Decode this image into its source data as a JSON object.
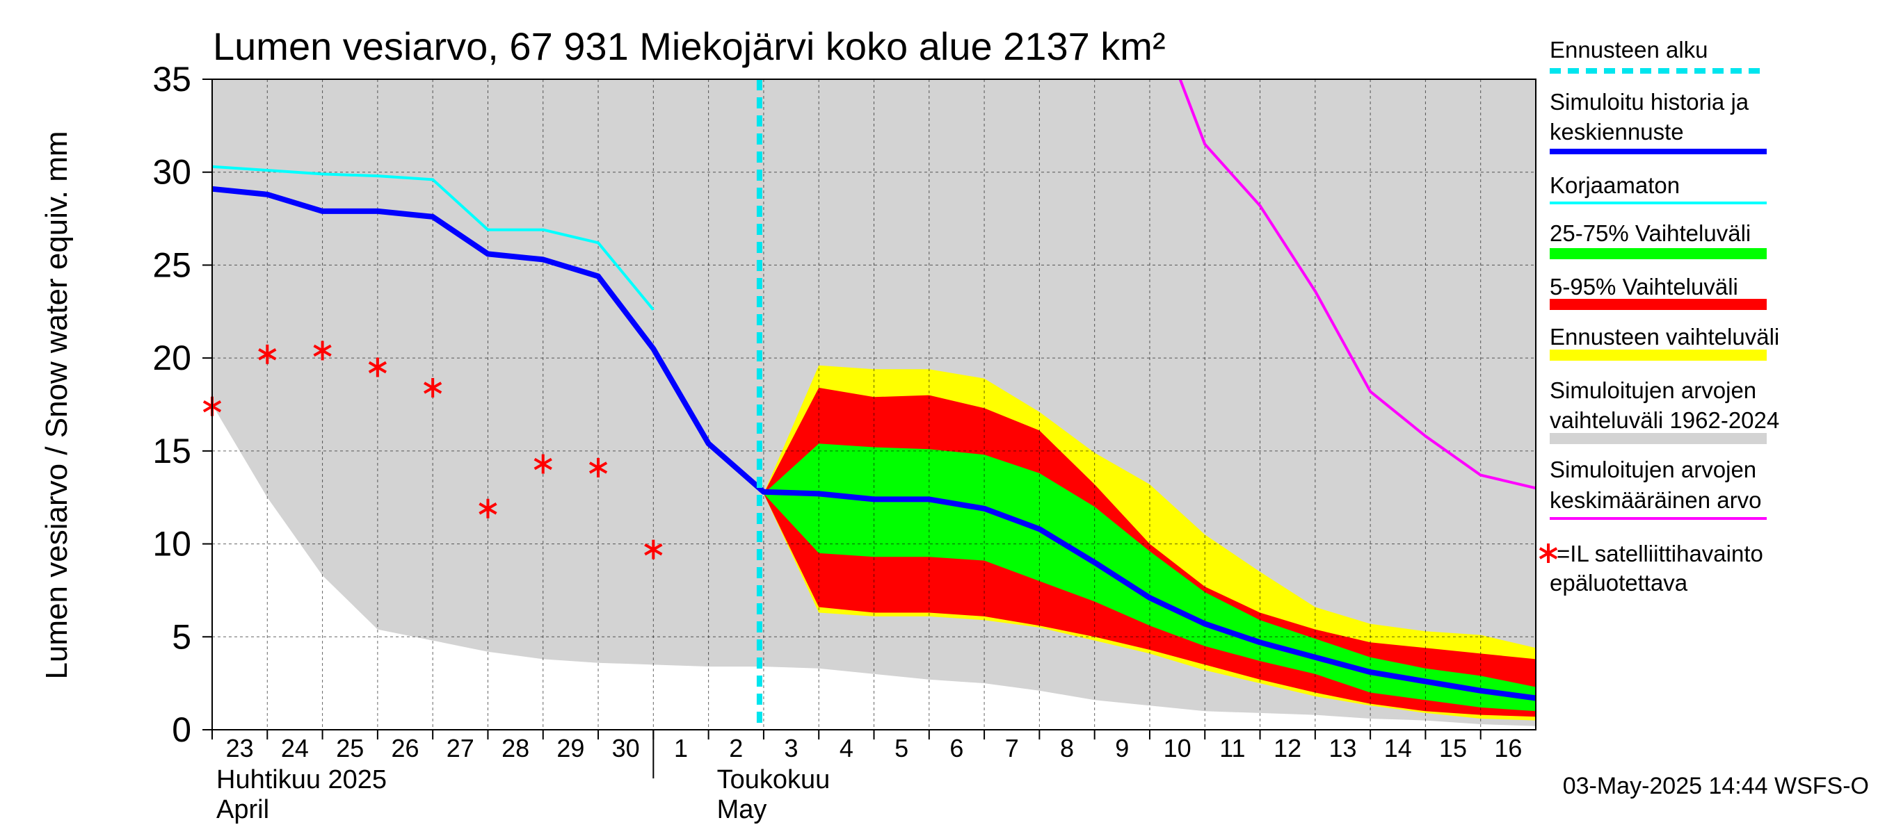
{
  "chart_data": {
    "type": "area",
    "title": "Lumen vesiarvo, 67 931 Miekojärvi koko alue 2137 km²",
    "ylabel": "Lumen vesiarvo / Snow water equiv.    mm",
    "ylim": [
      0,
      35
    ],
    "yticks": [
      0,
      5,
      10,
      15,
      20,
      25,
      30,
      35
    ],
    "x_day_labels": [
      "23",
      "24",
      "25",
      "26",
      "27",
      "28",
      "29",
      "30",
      "1",
      "2",
      "3",
      "4",
      "5",
      "6",
      "7",
      "8",
      "9",
      "10",
      "11",
      "12",
      "13",
      "14",
      "15",
      "16"
    ],
    "month_labels": [
      {
        "fi": "Huhtikuu  2025",
        "en": "April",
        "start_day": "23"
      },
      {
        "fi": "Toukokuu",
        "en": "May",
        "start_day": "2"
      }
    ],
    "grid": true,
    "forecast_start_day_index": 10,
    "series": [
      {
        "name": "Simuloitujen arvojen vaihteluväli 1962-2024",
        "kind": "band",
        "color": "#d3d3d3",
        "x": [
          0,
          1,
          2,
          3,
          3.5,
          4,
          4.5,
          5,
          5.5,
          6,
          7,
          8,
          9,
          10,
          11,
          12,
          13,
          14,
          15,
          16,
          17,
          18,
          19,
          20,
          21,
          22,
          23,
          24
        ],
        "upper": [
          35,
          35,
          35,
          35,
          35,
          35,
          35,
          35,
          35,
          35,
          35,
          35,
          35,
          35,
          35,
          35,
          35,
          35,
          35,
          35,
          35,
          35,
          35,
          35,
          35,
          35,
          35,
          35
        ],
        "lower": [
          17.5,
          12.5,
          8.3,
          5.4,
          5.1,
          4.8,
          4.5,
          4.2,
          4.0,
          3.8,
          3.6,
          3.5,
          3.4,
          3.4,
          3.3,
          3.0,
          2.7,
          2.5,
          2.1,
          1.6,
          1.3,
          1.0,
          0.9,
          0.8,
          0.6,
          0.5,
          0.3,
          0.2
        ]
      },
      {
        "name": "Ennusteen vaihteluväli",
        "kind": "band",
        "color": "#ffff00",
        "x": [
          10,
          11,
          12,
          13,
          14,
          15,
          16,
          17,
          18,
          19,
          20,
          21,
          22,
          23,
          24
        ],
        "upper": [
          12.7,
          19.6,
          19.4,
          19.4,
          18.9,
          17.1,
          14.9,
          13.2,
          10.5,
          8.5,
          6.6,
          5.7,
          5.3,
          5.1,
          4.4
        ],
        "lower": [
          12.7,
          6.3,
          6.1,
          6.1,
          5.9,
          5.5,
          4.8,
          4.1,
          3.2,
          2.5,
          1.8,
          1.3,
          0.9,
          0.6,
          0.5
        ]
      },
      {
        "name": "5-95% Vaihteluväli",
        "kind": "band",
        "color": "#ff0000",
        "x": [
          10,
          11,
          12,
          13,
          14,
          15,
          16,
          17,
          18,
          19,
          20,
          21,
          22,
          23,
          24
        ],
        "upper": [
          12.7,
          18.4,
          17.9,
          18.0,
          17.3,
          16.1,
          13.2,
          10.0,
          7.7,
          6.3,
          5.4,
          4.7,
          4.4,
          4.1,
          3.8
        ],
        "lower": [
          12.7,
          6.6,
          6.3,
          6.3,
          6.1,
          5.6,
          5.0,
          4.3,
          3.5,
          2.7,
          2.0,
          1.4,
          1.0,
          0.8,
          0.7
        ]
      },
      {
        "name": "25-75% Vaihteluväli",
        "kind": "band",
        "color": "#00ff00",
        "x": [
          10,
          11,
          12,
          13,
          14,
          15,
          16,
          17,
          18,
          19,
          20,
          21,
          22,
          23,
          24
        ],
        "upper": [
          12.7,
          15.4,
          15.2,
          15.1,
          14.8,
          13.8,
          12.0,
          9.6,
          7.4,
          5.9,
          4.9,
          3.9,
          3.3,
          2.9,
          2.3
        ],
        "lower": [
          12.7,
          9.5,
          9.3,
          9.3,
          9.1,
          8.0,
          6.9,
          5.6,
          4.5,
          3.7,
          3.0,
          2.0,
          1.6,
          1.2,
          1.0
        ]
      },
      {
        "name": "Simuloitujen arvojen keskimääräinen arvo",
        "kind": "line",
        "color": "#ff00ff",
        "width": 4,
        "x": [
          17.55,
          18.0,
          19.0,
          20.0,
          21.0,
          22.0,
          23.0,
          24.0
        ],
        "y": [
          35.0,
          31.5,
          28.2,
          23.6,
          18.2,
          15.8,
          13.7,
          13.0
        ]
      },
      {
        "name": "Korjaamaton",
        "kind": "line",
        "color": "#00ffff",
        "width": 4,
        "x": [
          0,
          1,
          2,
          3,
          4,
          5,
          6,
          7,
          8
        ],
        "y": [
          30.3,
          30.1,
          29.9,
          29.8,
          29.6,
          26.9,
          26.9,
          26.2,
          22.6
        ]
      },
      {
        "name": "Simuloitu historia ja keskiennuste",
        "kind": "line",
        "color": "#0000ff",
        "width": 8,
        "x": [
          0,
          1,
          2,
          3,
          4,
          5,
          6,
          7,
          8,
          9,
          10,
          11,
          12,
          13,
          14,
          15,
          16,
          17,
          18,
          19,
          20,
          21,
          22,
          23,
          24
        ],
        "y": [
          29.1,
          28.8,
          27.9,
          27.9,
          27.6,
          25.6,
          25.3,
          24.4,
          20.5,
          15.4,
          12.8,
          12.7,
          12.4,
          12.4,
          11.9,
          10.8,
          9.0,
          7.1,
          5.7,
          4.7,
          3.9,
          3.1,
          2.6,
          2.1,
          1.7
        ]
      },
      {
        "name": "=IL satelliittihavainto epäluotettava",
        "kind": "scatter",
        "color": "#ff0000",
        "x": [
          0,
          1,
          2,
          3,
          4,
          5,
          6,
          7,
          8
        ],
        "y": [
          17.4,
          20.2,
          20.4,
          19.5,
          18.4,
          11.9,
          14.3,
          14.1,
          9.7
        ]
      }
    ],
    "forecast_line_color": "#00e5ee",
    "legend_position": "right",
    "legend": [
      {
        "text1": "Ennusteen alku",
        "text2": "",
        "swatch": "dashed",
        "color": "#00e5ee"
      },
      {
        "text1": "Simuloitu historia ja",
        "text2": "keskiennuste",
        "swatch": "line",
        "color": "#0000ff"
      },
      {
        "text1": "Korjaamaton",
        "text2": "",
        "swatch": "line",
        "color": "#00ffff"
      },
      {
        "text1": "25-75% Vaihteluväli",
        "text2": "",
        "swatch": "bar",
        "color": "#00ff00"
      },
      {
        "text1": "5-95% Vaihteluväli",
        "text2": "",
        "swatch": "bar",
        "color": "#ff0000"
      },
      {
        "text1": "Ennusteen vaihteluväli",
        "text2": "",
        "swatch": "bar",
        "color": "#ffff00"
      },
      {
        "text1": "Simuloitujen arvojen",
        "text2": "vaihteluväli 1962-2024",
        "swatch": "bar",
        "color": "#d3d3d3"
      },
      {
        "text1": "Simuloitujen arvojen",
        "text2": "keskimääräinen arvo",
        "swatch": "line",
        "color": "#ff00ff"
      },
      {
        "text1": "=IL satelliittihavainto",
        "text2": "epäluotettava",
        "swatch": "star",
        "color": "#ff0000"
      }
    ],
    "footer": "03-May-2025 14:44 WSFS-O"
  }
}
